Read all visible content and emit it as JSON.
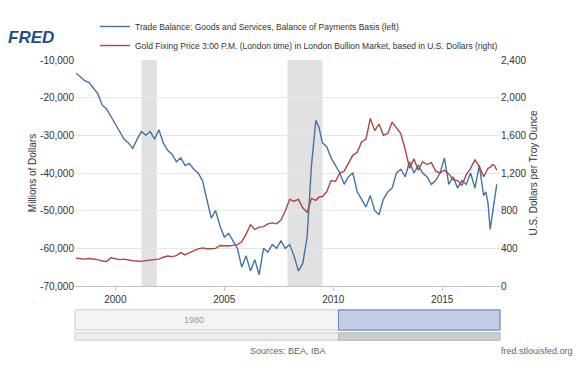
{
  "chart_data": {
    "type": "line",
    "logo": "FRED",
    "x": [
      1998.2,
      1998.4,
      1998.6,
      1998.8,
      1999.0,
      1999.2,
      1999.4,
      1999.6,
      1999.8,
      2000.0,
      2000.2,
      2000.4,
      2000.6,
      2000.8,
      2001.0,
      2001.2,
      2001.4,
      2001.6,
      2001.8,
      2002.0,
      2002.2,
      2002.4,
      2002.6,
      2002.8,
      2003.0,
      2003.2,
      2003.4,
      2003.6,
      2003.8,
      2004.0,
      2004.2,
      2004.4,
      2004.6,
      2004.8,
      2005.0,
      2005.2,
      2005.4,
      2005.6,
      2005.8,
      2006.0,
      2006.2,
      2006.4,
      2006.6,
      2006.8,
      2007.0,
      2007.2,
      2007.4,
      2007.6,
      2007.8,
      2008.0,
      2008.2,
      2008.4,
      2008.6,
      2008.8,
      2009.0,
      2009.2,
      2009.35,
      2009.5,
      2009.7,
      2009.9,
      2010.1,
      2010.3,
      2010.5,
      2010.7,
      2010.9,
      2011.1,
      2011.3,
      2011.5,
      2011.7,
      2011.9,
      2012.1,
      2012.3,
      2012.5,
      2012.7,
      2012.9,
      2013.1,
      2013.3,
      2013.5,
      2013.7,
      2013.9,
      2014.1,
      2014.3,
      2014.5,
      2014.7,
      2014.9,
      2015.1,
      2015.3,
      2015.5,
      2015.7,
      2015.9,
      2016.1,
      2016.3,
      2016.5,
      2016.7,
      2016.9,
      2017.0,
      2017.1,
      2017.2,
      2017.3,
      2017.4,
      2017.5
    ],
    "series": [
      {
        "name": "Trade Balance: Goods and Services, Balance of Payments Basis (left)",
        "color": "#4572a7",
        "line_style": "solid",
        "axis": "y",
        "values": [
          -13500,
          -14500,
          -15500,
          -16000,
          -17500,
          -19000,
          -22000,
          -23000,
          -25000,
          -27000,
          -29000,
          -31000,
          -32000,
          -33500,
          -31000,
          -29000,
          -30000,
          -29000,
          -31000,
          -28500,
          -32000,
          -34000,
          -35000,
          -37000,
          -36000,
          -38000,
          -37500,
          -39000,
          -40000,
          -42000,
          -47000,
          -52000,
          -50000,
          -54000,
          -57000,
          -56000,
          -58000,
          -60000,
          -65000,
          -62000,
          -66000,
          -63000,
          -67000,
          -60000,
          -61000,
          -59000,
          -60000,
          -58000,
          -60000,
          -59000,
          -62000,
          -66000,
          -64000,
          -57000,
          -38000,
          -26000,
          -28000,
          -32000,
          -33000,
          -36000,
          -38000,
          -40000,
          -43000,
          -41000,
          -40000,
          -45000,
          -47000,
          -49000,
          -46000,
          -50000,
          -51000,
          -47000,
          -45000,
          -44000,
          -40000,
          -39000,
          -41000,
          -37000,
          -40000,
          -38000,
          -40000,
          -41000,
          -43000,
          -42000,
          -40000,
          -36000,
          -43000,
          -41000,
          -44000,
          -42000,
          -43000,
          -40000,
          -44000,
          -38000,
          -46000,
          -45000,
          -48000,
          -55000,
          -51000,
          -47000,
          -43000
        ]
      },
      {
        "name": "Gold Fixing Price 3:00 P.M. (London time) in London Bullion Market, based in U.S. Dollars (right)",
        "color": "#aa4643",
        "line_style": "solid",
        "axis": "y2",
        "values": [
          295,
          290,
          285,
          292,
          287,
          280,
          265,
          260,
          300,
          290,
          280,
          285,
          275,
          268,
          265,
          262,
          270,
          275,
          278,
          285,
          305,
          318,
          312,
          322,
          355,
          330,
          355,
          375,
          395,
          405,
          395,
          395,
          400,
          430,
          425,
          425,
          432,
          440,
          470,
          550,
          650,
          600,
          625,
          630,
          660,
          670,
          660,
          700,
          800,
          920,
          900,
          920,
          830,
          780,
          930,
          910,
          945,
          950,
          1000,
          1120,
          1110,
          1200,
          1220,
          1300,
          1390,
          1420,
          1530,
          1560,
          1780,
          1650,
          1720,
          1600,
          1620,
          1740,
          1680,
          1620,
          1450,
          1250,
          1350,
          1230,
          1320,
          1290,
          1310,
          1220,
          1200,
          1230,
          1190,
          1130,
          1120,
          1070,
          1180,
          1250,
          1340,
          1270,
          1160,
          1200,
          1250,
          1260,
          1290,
          1280,
          1230
        ]
      }
    ],
    "xlim": [
      1998.15,
      2017.65
    ],
    "xticks": [
      2000,
      2005,
      2010,
      2015
    ],
    "ylabel": "Millions of Dollars",
    "ylim": [
      -70000,
      -10000
    ],
    "yticks": [
      {
        "value": -70000,
        "label": "-70,000"
      },
      {
        "value": -60000,
        "label": "-60,000"
      },
      {
        "value": -50000,
        "label": "-50,000"
      },
      {
        "value": -40000,
        "label": "-40,000"
      },
      {
        "value": -30000,
        "label": "-30,000"
      },
      {
        "value": -20000,
        "label": "-20,000"
      },
      {
        "value": -10000,
        "label": "-10,000"
      }
    ],
    "y2label": "U.S. Dollars per Troy Ounce",
    "y2lim": [
      0,
      2400
    ],
    "y2ticks": [
      0,
      400,
      800,
      {
        "value": 1200,
        "label": "1,200"
      },
      {
        "value": 1600,
        "label": "1,600"
      },
      {
        "value": 2000,
        "label": "2,000"
      },
      {
        "value": 2400,
        "label": "2,400"
      }
    ],
    "shaded_periods": [
      [
        2001.2,
        2001.9
      ],
      [
        2007.9,
        2009.5
      ]
    ],
    "navigator_label": "1980",
    "sources": "Sources: BEA, IBA",
    "site": "fred.stlouisfed.org",
    "grid": true,
    "legend": "top"
  }
}
